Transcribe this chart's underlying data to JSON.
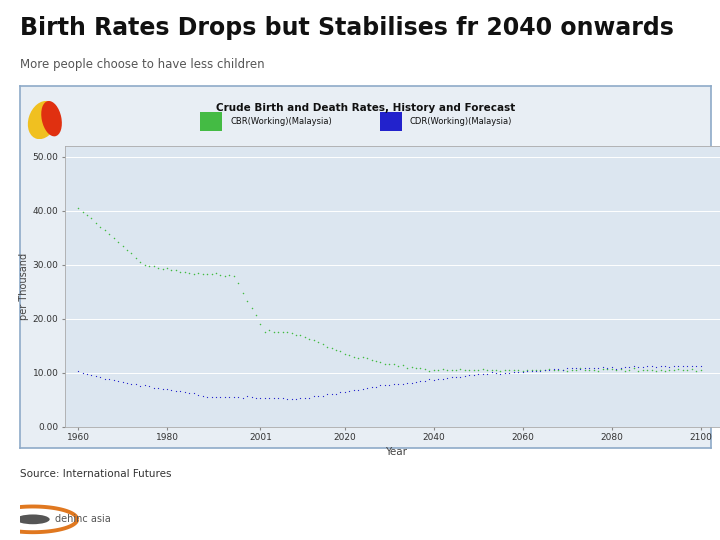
{
  "title": "Birth Rates Drops but Stabilises fr 2040 onwards",
  "subtitle": "More people choose to have less children",
  "chart_title": "Crude Birth and Death Rates, History and Forecast",
  "legend_cbr": "CBR(Working)(Malaysia)",
  "legend_cdr": "CDR(Working)(Malaysia)",
  "ylabel": "per Thousand",
  "xlabel": "Year",
  "source": "Source: International Futures",
  "logo_text": "dehinc asia",
  "cbr_color": "#44bb44",
  "cdr_color": "#2222cc",
  "bg_color": "#ffffff",
  "chart_bg": "#e8eef4",
  "chart_inner_bg": "#dce6f0",
  "orange_bar_color": "#e07820",
  "title_box_bg": "#ffffff",
  "ytick_labels": [
    "0.00",
    "10.00",
    "20.00",
    "30.00",
    "40.00",
    "50.00"
  ],
  "ytick_values": [
    0,
    10,
    20,
    30,
    40,
    50
  ],
  "xtick_labels": [
    "1960",
    "1980",
    "2001",
    "2020",
    "2040",
    "2060",
    "2080",
    "2100"
  ],
  "xtick_values": [
    1960,
    1980,
    2001,
    2020,
    2040,
    2060,
    2080,
    2100
  ]
}
